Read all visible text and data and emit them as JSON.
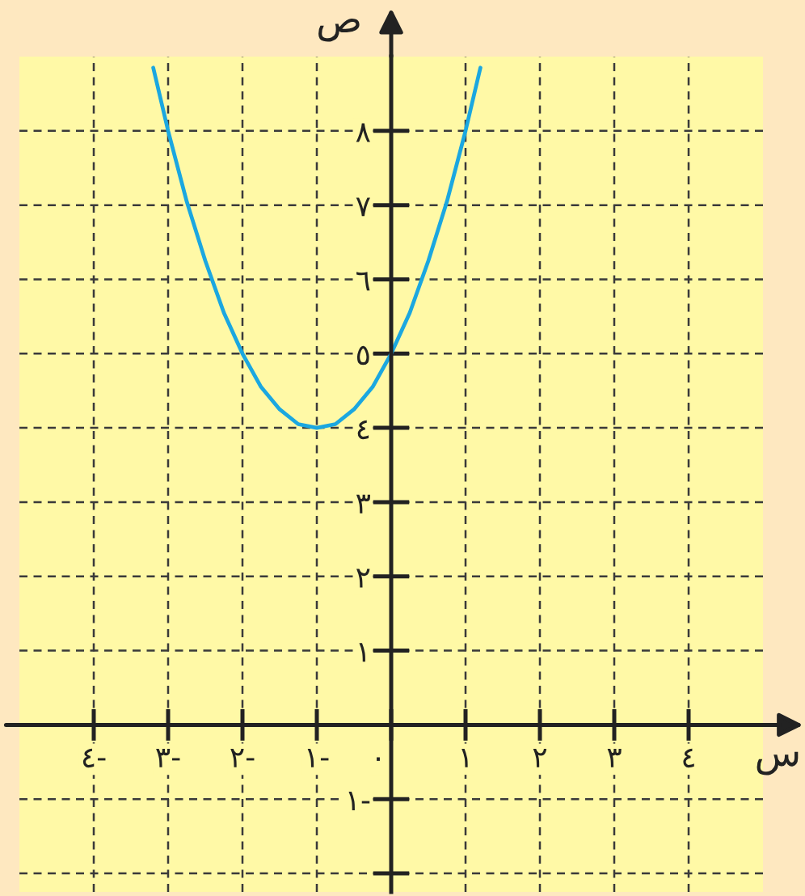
{
  "chart_data": {
    "type": "line",
    "xlabel": "س",
    "ylabel": "ص",
    "x": [
      -3.2,
      -3,
      -2.75,
      -2.5,
      -2.25,
      -2,
      -1.75,
      -1.5,
      -1.25,
      -1,
      -0.75,
      -0.5,
      -0.25,
      0,
      0.25,
      0.5,
      0.75,
      1,
      1.2
    ],
    "series": [
      {
        "color": "#1ba7e0",
        "values": [
          8.85,
          8,
          7.05,
          6.25,
          5.55,
          5,
          4.55,
          4.25,
          4.05,
          4,
          4.05,
          4.25,
          4.55,
          5,
          5.55,
          6.25,
          7.05,
          8,
          8.85
        ]
      }
    ],
    "xlim": [
      -5,
      5
    ],
    "ylim": [
      -2.25,
      9
    ],
    "xticks": [
      {
        "value": -4,
        "label": "٤-"
      },
      {
        "value": -3,
        "label": "٣-"
      },
      {
        "value": -2,
        "label": "٢-"
      },
      {
        "value": -1,
        "label": "١-"
      },
      {
        "value": 0,
        "label": "٠"
      },
      {
        "value": 1,
        "label": "١"
      },
      {
        "value": 2,
        "label": "٢"
      },
      {
        "value": 3,
        "label": "٣"
      },
      {
        "value": 4,
        "label": "٤"
      }
    ],
    "yticks": [
      {
        "value": -2,
        "label": null
      },
      {
        "value": -1,
        "label": "١-"
      },
      {
        "value": 1,
        "label": "١"
      },
      {
        "value": 2,
        "label": "٢"
      },
      {
        "value": 3,
        "label": "٣"
      },
      {
        "value": 4,
        "label": "٤"
      },
      {
        "value": 5,
        "label": "٥"
      },
      {
        "value": 6,
        "label": "٦"
      },
      {
        "value": 7,
        "label": "٧"
      },
      {
        "value": 8,
        "label": "٨"
      }
    ],
    "grid": true
  }
}
